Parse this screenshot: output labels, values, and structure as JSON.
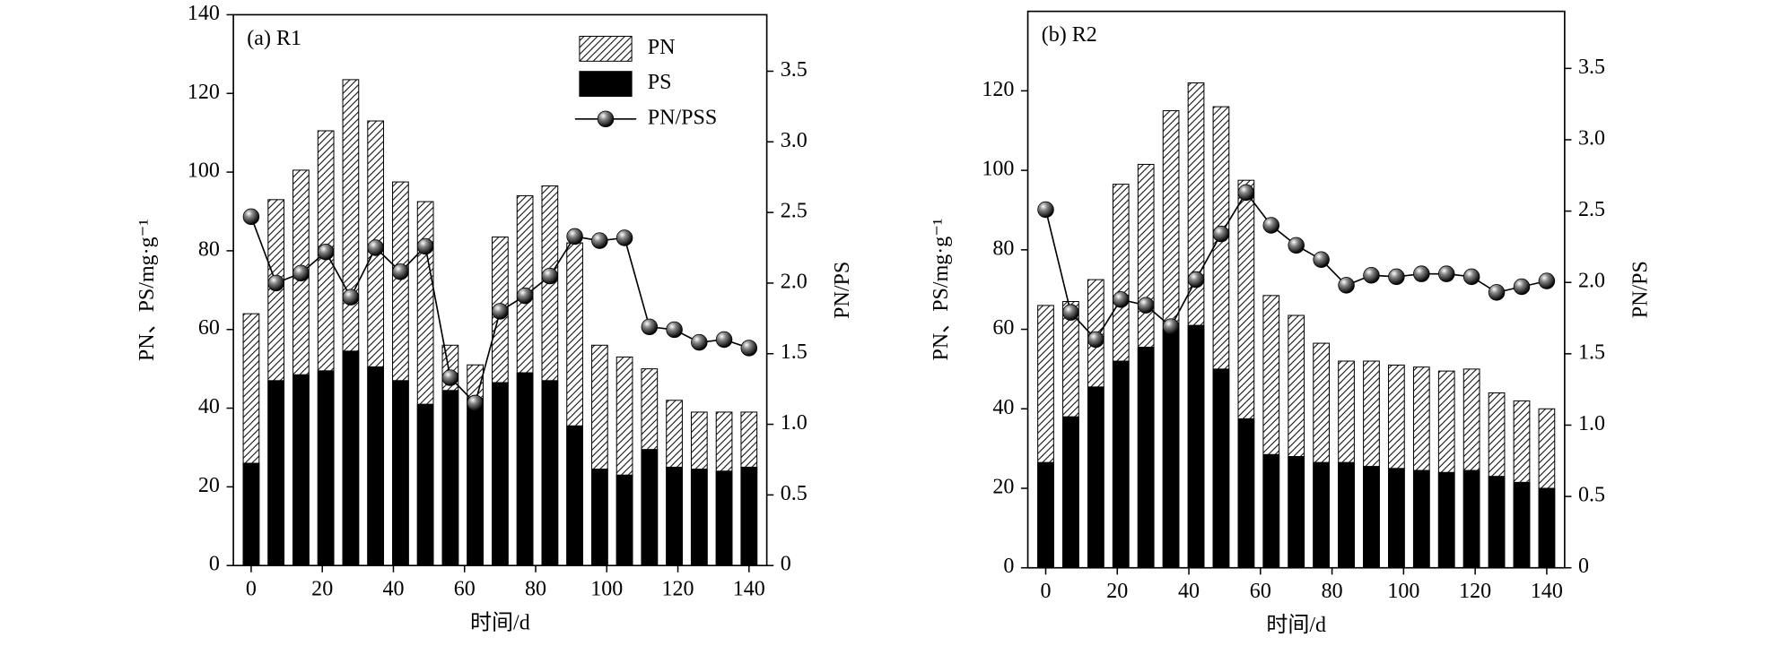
{
  "chart_data": [
    {
      "type": "bar",
      "title": "(a) R1",
      "xlabel": "时间/d",
      "ylabel": "PN、PS/mg·g⁻¹",
      "y2label": "PN/PS",
      "x": [
        0,
        7,
        14,
        21,
        28,
        35,
        42,
        49,
        56,
        63,
        70,
        77,
        84,
        91,
        98,
        105,
        112,
        119,
        126,
        133,
        140
      ],
      "series": [
        {
          "name": "PN",
          "color": "#000000",
          "hatch": true,
          "values": [
            64,
            93,
            100.5,
            110.5,
            123.5,
            113,
            97.5,
            92.5,
            56,
            51,
            83.5,
            94,
            96.5,
            82,
            56,
            53,
            50,
            42,
            39,
            39,
            39
          ]
        },
        {
          "name": "PS",
          "color": "#000000",
          "values": [
            26,
            47,
            48.5,
            49.5,
            54.5,
            50.5,
            47,
            41,
            44.5,
            42.5,
            46.5,
            49,
            47,
            35.5,
            24.5,
            23,
            29.5,
            25,
            24.5,
            24,
            25
          ]
        },
        {
          "name": "PN/PSS",
          "type": "line",
          "axis": "y2",
          "color": "#000000",
          "values": [
            2.47,
            2.0,
            2.07,
            2.22,
            1.9,
            2.25,
            2.08,
            2.26,
            1.33,
            1.15,
            1.8,
            1.91,
            2.05,
            2.33,
            2.3,
            2.32,
            1.69,
            1.67,
            1.58,
            1.6,
            1.54
          ]
        }
      ],
      "xlim": [
        -5,
        145
      ],
      "xticks": [
        0,
        20,
        40,
        60,
        80,
        100,
        120,
        140
      ],
      "ylim": [
        0,
        140
      ],
      "yticks": [
        0,
        20,
        40,
        60,
        80,
        100,
        120,
        140
      ],
      "y2lim": [
        0,
        3.9
      ],
      "y2ticks": [
        {
          "value": 0,
          "label": "0"
        },
        0.5,
        {
          "value": 1,
          "label": "1.0"
        },
        1.5,
        {
          "value": 2,
          "label": "2.0"
        },
        2.5,
        {
          "value": 3,
          "label": "3.0"
        },
        3.5
      ],
      "legend": "upper right"
    },
    {
      "type": "bar",
      "title": "(b) R2",
      "xlabel": "时间/d",
      "ylabel": "PN、PS/mg·g⁻¹",
      "y2label": "PN/PS",
      "x": [
        0,
        7,
        14,
        21,
        28,
        35,
        42,
        49,
        56,
        63,
        70,
        77,
        84,
        91,
        98,
        105,
        112,
        119,
        126,
        133,
        140
      ],
      "series": [
        {
          "color": "#000000",
          "hatch": true,
          "values": [
            66,
            67,
            72.5,
            96.5,
            101.5,
            115,
            122,
            116,
            97.5,
            68.5,
            63.5,
            56.5,
            52,
            52,
            51,
            50.5,
            49.5,
            50,
            44,
            42,
            40
          ]
        },
        {
          "color": "#000000",
          "values": [
            26.5,
            38,
            45.5,
            52,
            55.5,
            60,
            61,
            50,
            37.5,
            28.5,
            28,
            26.5,
            26.5,
            25.5,
            25,
            24.5,
            24,
            24.5,
            23,
            21.5,
            20
          ]
        },
        {
          "type": "line",
          "axis": "y2",
          "color": "#000000",
          "values": [
            2.51,
            1.79,
            1.6,
            1.88,
            1.84,
            1.69,
            2.02,
            2.34,
            2.63,
            2.4,
            2.26,
            2.16,
            1.98,
            2.05,
            2.04,
            2.06,
            2.06,
            2.04,
            1.93,
            1.97,
            2.01
          ]
        }
      ],
      "xlim": [
        -5,
        145
      ],
      "xticks": [
        0,
        20,
        40,
        60,
        80,
        100,
        120,
        140
      ],
      "ylim": [
        0,
        140
      ],
      "yticks": [
        0,
        20,
        40,
        60,
        80,
        100,
        120
      ],
      "y2lim": [
        0,
        3.9
      ],
      "y2ticks": [
        {
          "value": 0,
          "label": "0"
        },
        0.5,
        {
          "value": 1,
          "label": "1.0"
        },
        1.5,
        {
          "value": 2,
          "label": "2.0"
        },
        2.5,
        {
          "value": 3,
          "label": "3.0"
        },
        3.5
      ],
      "legend": false
    }
  ]
}
